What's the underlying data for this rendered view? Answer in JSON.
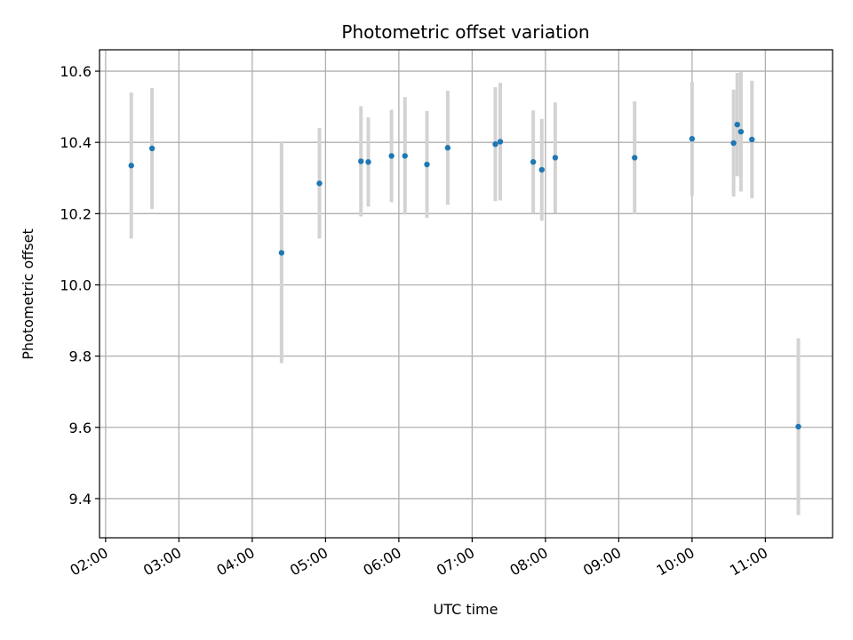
{
  "chart_data": {
    "type": "scatter",
    "title": "Photometric offset variation",
    "xlabel": "UTC time",
    "ylabel": "Photometric offset",
    "x_axis": "time",
    "xlim": [
      "01:55",
      "11:55"
    ],
    "ylim": [
      9.29,
      10.66
    ],
    "x_ticks": [
      "02:00",
      "03:00",
      "04:00",
      "05:00",
      "06:00",
      "07:00",
      "08:00",
      "09:00",
      "10:00",
      "11:00"
    ],
    "y_ticks": [
      9.4,
      9.6,
      9.8,
      10.0,
      10.2,
      10.4,
      10.6
    ],
    "y_tick_labels": [
      "9.4",
      "9.6",
      "9.8",
      "10.0",
      "10.2",
      "10.4",
      "10.6"
    ],
    "grid": true,
    "marker_color": "#1f77b4",
    "errorbar_color": "#d3d3d3",
    "points": [
      {
        "x": "02:21",
        "y": 10.335,
        "err": 0.205
      },
      {
        "x": "02:38",
        "y": 10.383,
        "err": 0.17
      },
      {
        "x": "04:24",
        "y": 10.09,
        "err": 0.31
      },
      {
        "x": "04:55",
        "y": 10.285,
        "err": 0.155
      },
      {
        "x": "05:29",
        "y": 10.347,
        "err": 0.155
      },
      {
        "x": "05:35",
        "y": 10.345,
        "err": 0.125
      },
      {
        "x": "05:54",
        "y": 10.362,
        "err": 0.13
      },
      {
        "x": "06:05",
        "y": 10.362,
        "err": 0.165
      },
      {
        "x": "06:23",
        "y": 10.338,
        "err": 0.15
      },
      {
        "x": "06:40",
        "y": 10.385,
        "err": 0.16
      },
      {
        "x": "07:19",
        "y": 10.395,
        "err": 0.16
      },
      {
        "x": "07:23",
        "y": 10.402,
        "err": 0.165
      },
      {
        "x": "07:50",
        "y": 10.345,
        "err": 0.145
      },
      {
        "x": "07:57",
        "y": 10.323,
        "err": 0.143
      },
      {
        "x": "08:08",
        "y": 10.357,
        "err": 0.155
      },
      {
        "x": "09:13",
        "y": 10.357,
        "err": 0.158
      },
      {
        "x": "10:00",
        "y": 10.41,
        "err": 0.16
      },
      {
        "x": "10:34",
        "y": 10.398,
        "err": 0.15
      },
      {
        "x": "10:37",
        "y": 10.45,
        "err": 0.145
      },
      {
        "x": "10:40",
        "y": 10.43,
        "err": 0.168
      },
      {
        "x": "10:49",
        "y": 10.408,
        "err": 0.165
      },
      {
        "x": "11:27",
        "y": 9.602,
        "err": 0.248
      }
    ]
  }
}
